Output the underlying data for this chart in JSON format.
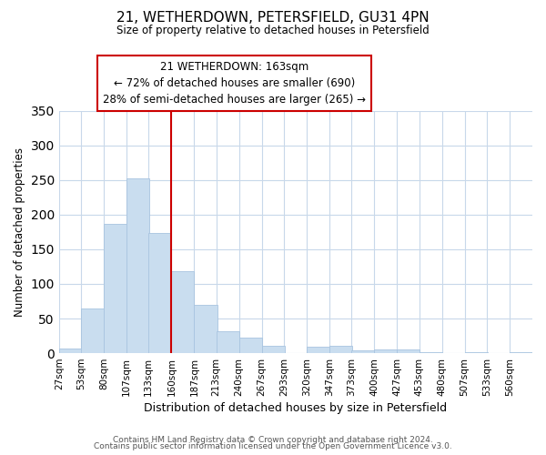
{
  "title": "21, WETHERDOWN, PETERSFIELD, GU31 4PN",
  "subtitle": "Size of property relative to detached houses in Petersfield",
  "xlabel": "Distribution of detached houses by size in Petersfield",
  "ylabel": "Number of detached properties",
  "bar_color": "#c9ddef",
  "bar_edge_color": "#a8c4e0",
  "background_color": "#ffffff",
  "grid_color": "#c8d8ea",
  "vline_x": 160,
  "vline_color": "#cc0000",
  "annotation_title": "21 WETHERDOWN: 163sqm",
  "annotation_line1": "← 72% of detached houses are smaller (690)",
  "annotation_line2": "28% of semi-detached houses are larger (265) →",
  "annotation_box_color": "#ffffff",
  "annotation_box_edge_color": "#cc0000",
  "bin_labels": [
    "27sqm",
    "53sqm",
    "80sqm",
    "107sqm",
    "133sqm",
    "160sqm",
    "187sqm",
    "213sqm",
    "240sqm",
    "267sqm",
    "293sqm",
    "320sqm",
    "347sqm",
    "373sqm",
    "400sqm",
    "427sqm",
    "453sqm",
    "480sqm",
    "507sqm",
    "533sqm",
    "560sqm"
  ],
  "bin_edges": [
    27,
    53,
    80,
    107,
    133,
    160,
    187,
    213,
    240,
    267,
    293,
    320,
    347,
    373,
    400,
    427,
    453,
    480,
    507,
    533,
    560
  ],
  "bar_heights": [
    7,
    65,
    187,
    252,
    173,
    119,
    70,
    31,
    23,
    10,
    0,
    9,
    10,
    4,
    5,
    5,
    2,
    0,
    1,
    0,
    2
  ],
  "ylim": [
    0,
    350
  ],
  "yticks": [
    0,
    50,
    100,
    150,
    200,
    250,
    300,
    350
  ],
  "footer1": "Contains HM Land Registry data © Crown copyright and database right 2024.",
  "footer2": "Contains public sector information licensed under the Open Government Licence v3.0."
}
